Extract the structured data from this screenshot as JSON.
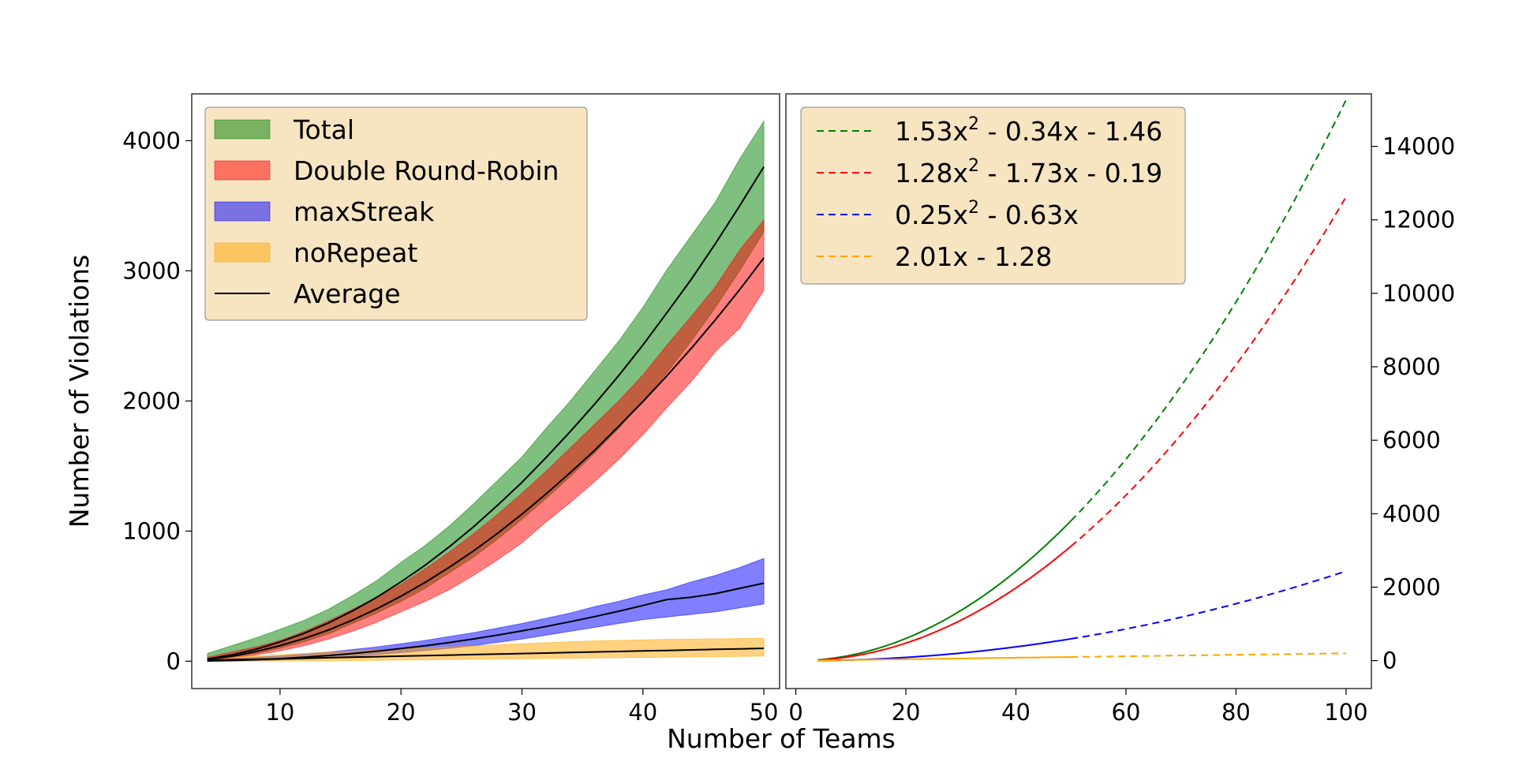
{
  "chart_data": [
    {
      "type": "area",
      "xlabel": "Number of Teams",
      "ylabel": "Number of Violations",
      "xticks": [
        10,
        20,
        30,
        40,
        50
      ],
      "yticks": [
        0,
        1000,
        2000,
        3000,
        4000
      ],
      "xlim": [
        2.7,
        51.3
      ],
      "ylim": [
        -210,
        4360
      ],
      "grid": false,
      "legend_position": "top-left",
      "x": [
        4,
        6,
        8,
        10,
        12,
        14,
        16,
        18,
        20,
        22,
        24,
        26,
        28,
        30,
        32,
        34,
        36,
        38,
        40,
        42,
        44,
        46,
        48,
        50
      ],
      "series": [
        {
          "name": "Total",
          "color": "#008000",
          "mean": [
            17,
            48,
            92,
            148,
            215,
            294,
            387,
            491,
            610,
            738,
            880,
            1033,
            1200,
            1375,
            1565,
            1765,
            1975,
            2195,
            2430,
            2680,
            2935,
            3210,
            3500,
            3800
          ],
          "lower": [
            8,
            30,
            60,
            100,
            150,
            210,
            290,
            370,
            460,
            560,
            680,
            800,
            940,
            1090,
            1250,
            1420,
            1600,
            1790,
            2000,
            2220,
            2460,
            2720,
            3000,
            3300
          ],
          "upper": [
            60,
            120,
            180,
            245,
            315,
            400,
            505,
            620,
            760,
            890,
            1040,
            1210,
            1390,
            1570,
            1790,
            2000,
            2230,
            2460,
            2720,
            3010,
            3270,
            3530,
            3860,
            4150
          ]
        },
        {
          "name": "Double Round-Robin",
          "color": "#ff0000",
          "mean": [
            13,
            38,
            74,
            120,
            175,
            240,
            317,
            403,
            500,
            606,
            722,
            848,
            984,
            1130,
            1285,
            1450,
            1620,
            1805,
            1995,
            2195,
            2405,
            2625,
            2855,
            3100
          ],
          "lower": [
            5,
            22,
            48,
            80,
            120,
            170,
            230,
            300,
            380,
            460,
            550,
            660,
            780,
            910,
            1070,
            1220,
            1380,
            1550,
            1740,
            1950,
            2150,
            2380,
            2560,
            2850
          ],
          "upper": [
            30,
            70,
            110,
            160,
            230,
            310,
            400,
            490,
            590,
            710,
            840,
            980,
            1130,
            1290,
            1460,
            1640,
            1820,
            2000,
            2200,
            2430,
            2650,
            2880,
            3160,
            3390
          ]
        },
        {
          "name": "maxStreak",
          "color": "#0000ff",
          "mean": [
            2,
            6,
            12,
            20,
            31,
            44,
            59,
            77,
            97,
            119,
            144,
            171,
            201,
            233,
            267,
            304,
            343,
            384,
            428,
            474,
            491,
            520,
            560,
            600
          ],
          "lower": [
            0,
            2,
            5,
            10,
            17,
            26,
            38,
            52,
            66,
            82,
            100,
            120,
            145,
            170,
            200,
            230,
            260,
            290,
            320,
            340,
            360,
            380,
            410,
            440
          ],
          "upper": [
            10,
            20,
            30,
            40,
            55,
            70,
            90,
            110,
            135,
            160,
            190,
            220,
            255,
            290,
            330,
            370,
            420,
            460,
            510,
            550,
            610,
            660,
            720,
            790
          ]
        },
        {
          "name": "noRepeat",
          "color": "#ffa500",
          "mean": [
            7,
            11,
            15,
            19,
            23,
            27,
            31,
            35,
            39,
            43,
            47,
            51,
            55,
            59,
            63,
            67,
            71,
            75,
            79,
            83,
            87,
            91,
            95,
            99
          ],
          "lower": [
            0,
            0,
            1,
            2,
            3,
            4,
            5,
            7,
            9,
            11,
            13,
            15,
            17,
            19,
            21,
            23,
            25,
            27,
            29,
            31,
            33,
            35,
            37,
            39
          ],
          "upper": [
            20,
            30,
            40,
            50,
            60,
            70,
            78,
            86,
            94,
            102,
            110,
            118,
            126,
            134,
            142,
            150,
            156,
            160,
            164,
            168,
            170,
            172,
            174,
            176
          ]
        }
      ],
      "average_line": {
        "name": "Average",
        "color": "#000000"
      }
    },
    {
      "type": "line",
      "xticks": [
        0,
        20,
        40,
        60,
        80,
        100
      ],
      "yticks": [
        0,
        2000,
        4000,
        6000,
        8000,
        10000,
        12000,
        14000
      ],
      "xlim": [
        -1.8,
        104.6
      ],
      "ylim": [
        -760,
        15430
      ],
      "y_axis_side": "right",
      "grid": false,
      "legend_position": "top-left",
      "fit_range": [
        4,
        50
      ],
      "extrapolate_range": [
        50,
        100
      ],
      "fits": [
        {
          "label_main": "1.53x",
          "label_sup": "2",
          "label_rest": " - 0.34x - 1.46",
          "coef": [
            1.53,
            -0.34,
            -1.46
          ],
          "color": "#008000"
        },
        {
          "label_main": "1.28x",
          "label_sup": "2",
          "label_rest": " - 1.73x - 0.19",
          "coef": [
            1.28,
            -1.73,
            -0.19
          ],
          "color": "#ff0000"
        },
        {
          "label_main": "0.25x",
          "label_sup": "2",
          "label_rest": " - 0.63x",
          "coef": [
            0.25,
            -0.63,
            0
          ],
          "color": "#0000ff"
        },
        {
          "label_main": "2.01x - 1.28",
          "label_sup": "",
          "label_rest": "",
          "coef": [
            0,
            2.01,
            -1.28
          ],
          "color": "#ffa500"
        }
      ]
    }
  ],
  "figure": {
    "shared_xlabel": "Number of Teams",
    "legend_bg": "#f5deb3"
  }
}
